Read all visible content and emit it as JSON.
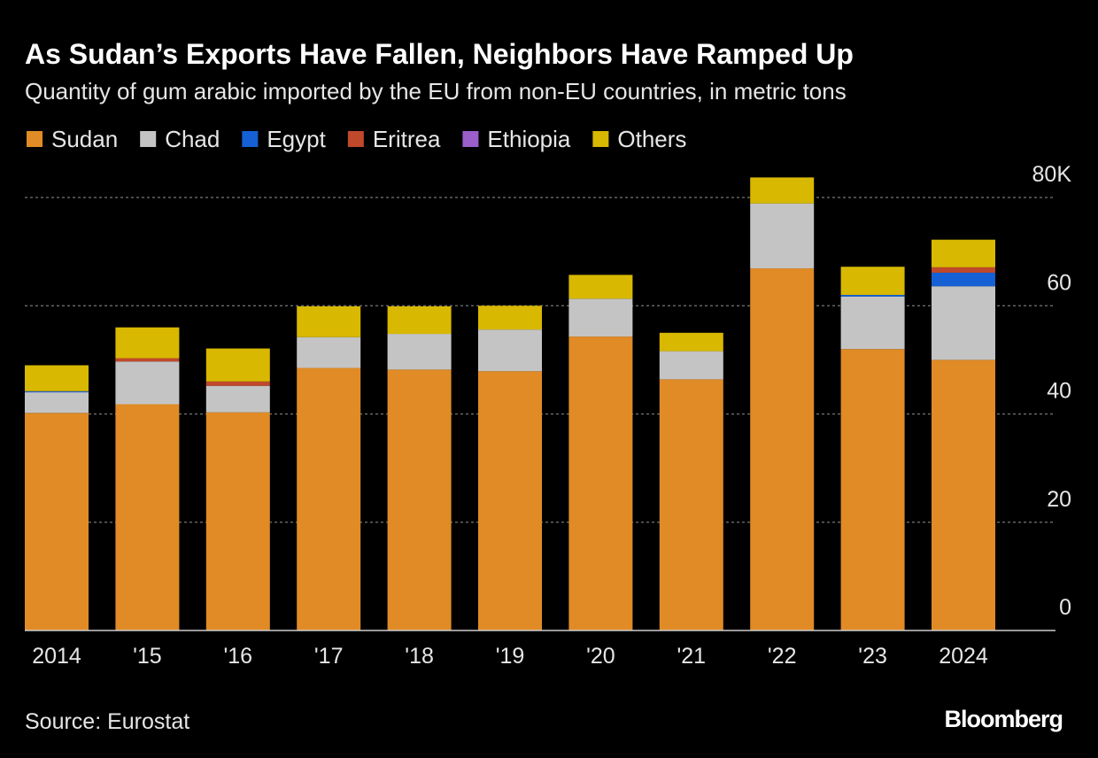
{
  "chart_data": {
    "type": "stacked_bar",
    "title": "As Sudan’s Exports Have Fallen, Neighbors Have Ramped Up",
    "subtitle": "Quantity of gum arabic imported by the EU from non-EU countries, in metric tons",
    "categories": [
      "2014",
      "'15",
      "'16",
      "'17",
      "'18",
      "'19",
      "'20",
      "'21",
      "'22",
      "'23",
      "2024"
    ],
    "series": [
      {
        "name": "Sudan",
        "color": "#e08b26",
        "values": [
          40.2,
          41.8,
          40.3,
          48.5,
          48.2,
          47.9,
          54.3,
          46.4,
          66.9,
          52.0,
          50.0
        ]
      },
      {
        "name": "Chad",
        "color": "#c4c4c4",
        "values": [
          3.8,
          7.9,
          4.9,
          5.7,
          6.6,
          7.7,
          7.0,
          5.2,
          12.0,
          9.7,
          13.6
        ]
      },
      {
        "name": "Egypt",
        "color": "#1560d4",
        "values": [
          0.2,
          0,
          0,
          0,
          0,
          0,
          0,
          0,
          0,
          0.3,
          2.5
        ]
      },
      {
        "name": "Eritrea",
        "color": "#c0492b",
        "values": [
          0,
          0.6,
          0.8,
          0,
          0,
          0,
          0,
          0,
          0,
          0,
          1.0
        ]
      },
      {
        "name": "Ethiopia",
        "color": "#9a5fc9",
        "values": [
          0,
          0,
          0,
          0,
          0,
          0,
          0,
          0,
          0,
          0,
          0
        ]
      },
      {
        "name": "Others",
        "color": "#d8b800",
        "values": [
          4.8,
          5.7,
          6.1,
          5.7,
          5.1,
          4.4,
          4.4,
          3.4,
          4.8,
          5.2,
          5.1
        ]
      }
    ],
    "ylim": [
      0,
      80
    ],
    "yticks": [
      0,
      20,
      40,
      60,
      {
        "value": 80,
        "label": "80K"
      }
    ],
    "grid": true,
    "source": "Source: Eurostat",
    "brand": "Bloomberg"
  }
}
